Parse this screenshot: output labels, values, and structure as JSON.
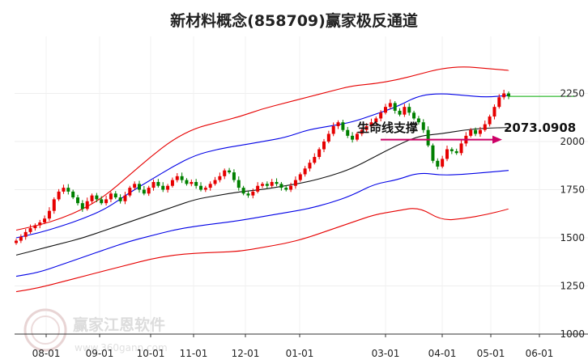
{
  "chart_data": {
    "type": "candlestick",
    "title": "新材料概念(858709)赢家极反通道",
    "x_ticks": [
      "08-01",
      "09-01",
      "10-01",
      "11-01",
      "12-01",
      "01-01",
      "03-01",
      "04-01",
      "05-01",
      "06-01"
    ],
    "y_ticks": [
      1000,
      1250,
      1500,
      1750,
      2000,
      2250
    ],
    "ylim": [
      1000,
      2400
    ],
    "grid": true,
    "colors": {
      "up": "#e60000",
      "down": "#008000",
      "outer_band": "#e60000",
      "inner_band": "#0000e6",
      "mid_line": "#111111",
      "arrow": "#cc0066",
      "price_line": "#00aa00"
    },
    "annotation": {
      "label": "生命线支撑",
      "value": "2073.0908"
    },
    "closes": [
      1485,
      1505,
      1530,
      1550,
      1565,
      1580,
      1600,
      1640,
      1700,
      1740,
      1760,
      1740,
      1710,
      1680,
      1650,
      1690,
      1720,
      1700,
      1680,
      1700,
      1730,
      1710,
      1690,
      1720,
      1760,
      1780,
      1750,
      1730,
      1760,
      1790,
      1770,
      1750,
      1770,
      1800,
      1820,
      1800,
      1780,
      1790,
      1770,
      1750,
      1760,
      1780,
      1800,
      1820,
      1850,
      1840,
      1800,
      1760,
      1730,
      1720,
      1740,
      1770,
      1780,
      1770,
      1790,
      1780,
      1760,
      1750,
      1770,
      1800,
      1830,
      1860,
      1890,
      1920,
      1960,
      2000,
      2040,
      2080,
      2100,
      2060,
      2030,
      2010,
      2040,
      2060,
      2080,
      2100,
      2120,
      2150,
      2180,
      2200,
      2160,
      2140,
      2180,
      2150,
      2120,
      2100,
      2060,
      1980,
      1900,
      1870,
      1910,
      1960,
      1950,
      1940,
      1990,
      2030,
      2060,
      2040,
      2060,
      2090,
      2130,
      2180,
      2230,
      2250,
      2235
    ],
    "outer_upper": [
      1540,
      1565,
      1600,
      1650,
      1720,
      1820,
      1920,
      2010,
      2070,
      2100,
      2130,
      2170,
      2200,
      2230,
      2260,
      2290,
      2300,
      2320,
      2350,
      2380,
      2390,
      2380,
      2370
    ],
    "inner_upper": [
      1500,
      1525,
      1560,
      1600,
      1650,
      1730,
      1800,
      1870,
      1930,
      1960,
      1980,
      2000,
      2020,
      2060,
      2080,
      2100,
      2140,
      2180,
      2240,
      2250,
      2240,
      2230,
      2240
    ],
    "mid_line": [
      1410,
      1440,
      1470,
      1500,
      1540,
      1580,
      1620,
      1660,
      1700,
      1720,
      1740,
      1750,
      1770,
      1790,
      1820,
      1860,
      1920,
      1980,
      2030,
      2040,
      2060,
      2070,
      2073
    ],
    "inner_lower": [
      1300,
      1320,
      1360,
      1400,
      1440,
      1480,
      1510,
      1540,
      1560,
      1575,
      1590,
      1610,
      1630,
      1650,
      1680,
      1720,
      1780,
      1800,
      1840,
      1825,
      1830,
      1840,
      1850
    ],
    "outer_lower": [
      1220,
      1240,
      1270,
      1300,
      1330,
      1360,
      1390,
      1410,
      1420,
      1425,
      1430,
      1450,
      1470,
      1500,
      1540,
      1580,
      1620,
      1640,
      1660,
      1590,
      1600,
      1620,
      1650
    ]
  },
  "watermark": {
    "name": "赢家江恩软件",
    "site": "www.360gann.com"
  }
}
